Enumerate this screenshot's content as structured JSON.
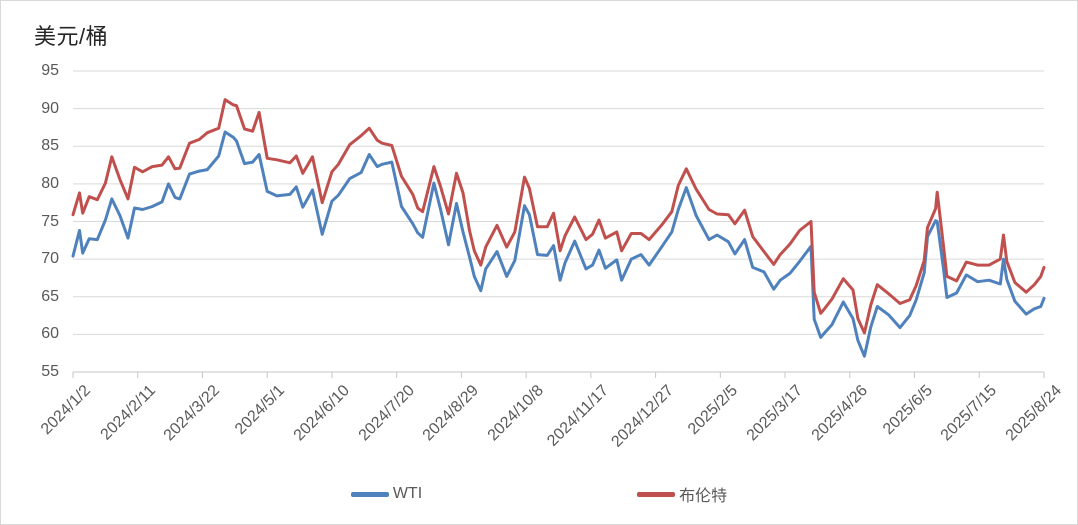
{
  "unit_label": "美元/桶",
  "colors": {
    "wti": "#4F81BD",
    "brent": "#C0504D",
    "grid": "#D9D9D9",
    "axis": "#C6C6C6",
    "tick_text": "#595959",
    "title_text": "#262626",
    "frame": "#D9D9D9",
    "background": "#FFFFFF"
  },
  "chart_data": {
    "type": "line",
    "title": "美元/桶",
    "xlabel": "",
    "ylabel": "美元/桶",
    "ylim": [
      55,
      95
    ],
    "y_ticks": [
      55,
      60,
      65,
      70,
      75,
      80,
      85,
      90,
      95
    ],
    "grid": "horizontal",
    "legend_position": "bottom-center",
    "x_range_days": [
      0,
      600
    ],
    "x_ticks": [
      {
        "day": 0,
        "label": "2024/1/2"
      },
      {
        "day": 40,
        "label": "2024/2/11"
      },
      {
        "day": 80,
        "label": "2024/3/22"
      },
      {
        "day": 120,
        "label": "2024/5/1"
      },
      {
        "day": 160,
        "label": "2024/6/10"
      },
      {
        "day": 200,
        "label": "2024/7/20"
      },
      {
        "day": 240,
        "label": "2024/8/29"
      },
      {
        "day": 280,
        "label": "2024/10/8"
      },
      {
        "day": 320,
        "label": "2024/11/17"
      },
      {
        "day": 360,
        "label": "2024/12/27"
      },
      {
        "day": 400,
        "label": "2025/2/5"
      },
      {
        "day": 440,
        "label": "2025/3/17"
      },
      {
        "day": 480,
        "label": "2025/4/26"
      },
      {
        "day": 520,
        "label": "2025/6/5"
      },
      {
        "day": 560,
        "label": "2025/7/15"
      },
      {
        "day": 600,
        "label": "2025/8/24"
      }
    ],
    "days": [
      0,
      4,
      6,
      10,
      15,
      20,
      24,
      29,
      34,
      38,
      43,
      49,
      55,
      59,
      63,
      66,
      72,
      78,
      83,
      90,
      94,
      99,
      101,
      106,
      111,
      115,
      120,
      126,
      134,
      138,
      142,
      148,
      154,
      160,
      164,
      171,
      178,
      183,
      188,
      191,
      197,
      203,
      210,
      213,
      216,
      223,
      227,
      232,
      237,
      241,
      245,
      248,
      252,
      255,
      262,
      268,
      273,
      279,
      282,
      287,
      293,
      297,
      301,
      304,
      310,
      317,
      321,
      325,
      329,
      336,
      339,
      345,
      351,
      356,
      364,
      370,
      374,
      379,
      385,
      393,
      398,
      405,
      409,
      415,
      420,
      427,
      433,
      437,
      443,
      449,
      456,
      458,
      462,
      464,
      469,
      476,
      482,
      485,
      489,
      493,
      497,
      504,
      511,
      517,
      521,
      526,
      528,
      533,
      534,
      538,
      540,
      546,
      552,
      559,
      566,
      573,
      575,
      577,
      582,
      589,
      594,
      598,
      600
    ],
    "series": [
      {
        "name": "WTI",
        "color": "#4F81BD",
        "values": [
          70.4,
          73.8,
          70.8,
          72.7,
          72.6,
          75.2,
          78.0,
          75.8,
          72.8,
          76.8,
          76.6,
          77.0,
          77.6,
          80.0,
          78.2,
          78.0,
          81.3,
          81.7,
          81.9,
          83.7,
          86.9,
          86.2,
          85.7,
          82.7,
          82.9,
          83.9,
          79.0,
          78.4,
          78.6,
          79.6,
          76.9,
          79.2,
          73.3,
          77.7,
          78.5,
          80.7,
          81.5,
          83.9,
          82.3,
          82.6,
          82.9,
          77.0,
          74.7,
          73.5,
          72.9,
          80.1,
          76.7,
          71.9,
          77.4,
          73.6,
          70.3,
          67.7,
          65.8,
          68.7,
          71.0,
          67.7,
          69.8,
          77.1,
          75.9,
          70.6,
          70.5,
          71.8,
          67.2,
          69.5,
          72.4,
          68.7,
          69.2,
          71.2,
          68.8,
          69.9,
          67.2,
          70.0,
          70.6,
          69.2,
          71.7,
          73.6,
          76.6,
          79.5,
          75.8,
          72.6,
          73.2,
          72.3,
          70.7,
          72.6,
          68.9,
          68.3,
          66.0,
          67.2,
          68.1,
          69.7,
          71.7,
          62.0,
          59.6,
          60.1,
          61.3,
          64.3,
          62.1,
          59.2,
          57.1,
          61.0,
          63.7,
          62.6,
          60.9,
          62.5,
          64.6,
          68.2,
          73.0,
          75.1,
          75.0,
          68.5,
          64.9,
          65.5,
          67.9,
          67.0,
          67.2,
          66.7,
          70.0,
          67.3,
          64.4,
          62.7,
          63.4,
          63.7,
          64.8
        ]
      },
      {
        "name": "布伦特",
        "color": "#C0504D",
        "values": [
          75.9,
          78.8,
          76.1,
          78.3,
          77.9,
          80.1,
          83.6,
          80.6,
          78.0,
          82.2,
          81.6,
          82.3,
          82.5,
          83.6,
          82.0,
          82.1,
          85.4,
          85.9,
          86.8,
          87.4,
          91.2,
          90.5,
          90.4,
          87.3,
          87.0,
          89.5,
          83.4,
          83.2,
          82.8,
          83.7,
          81.4,
          83.6,
          77.5,
          81.6,
          82.6,
          85.2,
          86.4,
          87.4,
          85.8,
          85.4,
          85.1,
          81.0,
          78.6,
          76.8,
          76.3,
          82.3,
          79.7,
          76.0,
          81.4,
          78.8,
          73.8,
          71.1,
          69.2,
          71.6,
          74.5,
          71.6,
          73.6,
          80.9,
          79.4,
          74.3,
          74.3,
          76.1,
          71.1,
          73.1,
          75.6,
          72.6,
          73.3,
          75.2,
          72.8,
          73.6,
          71.1,
          73.4,
          73.4,
          72.6,
          74.6,
          76.3,
          79.8,
          82.0,
          79.3,
          76.6,
          76.0,
          75.9,
          74.7,
          76.5,
          73.0,
          71.0,
          69.3,
          70.6,
          72.0,
          73.8,
          75.0,
          65.6,
          62.8,
          63.3,
          64.7,
          67.4,
          65.9,
          62.1,
          60.2,
          63.9,
          66.6,
          65.4,
          64.1,
          64.6,
          66.5,
          69.8,
          74.2,
          76.7,
          78.9,
          71.5,
          67.7,
          67.1,
          69.6,
          69.2,
          69.2,
          70.0,
          73.2,
          69.7,
          66.9,
          65.6,
          66.6,
          67.7,
          68.9
        ]
      }
    ]
  },
  "legend": {
    "items": [
      {
        "label": "WTI",
        "color": "#4F81BD"
      },
      {
        "label": "布伦特",
        "color": "#C0504D"
      }
    ]
  }
}
